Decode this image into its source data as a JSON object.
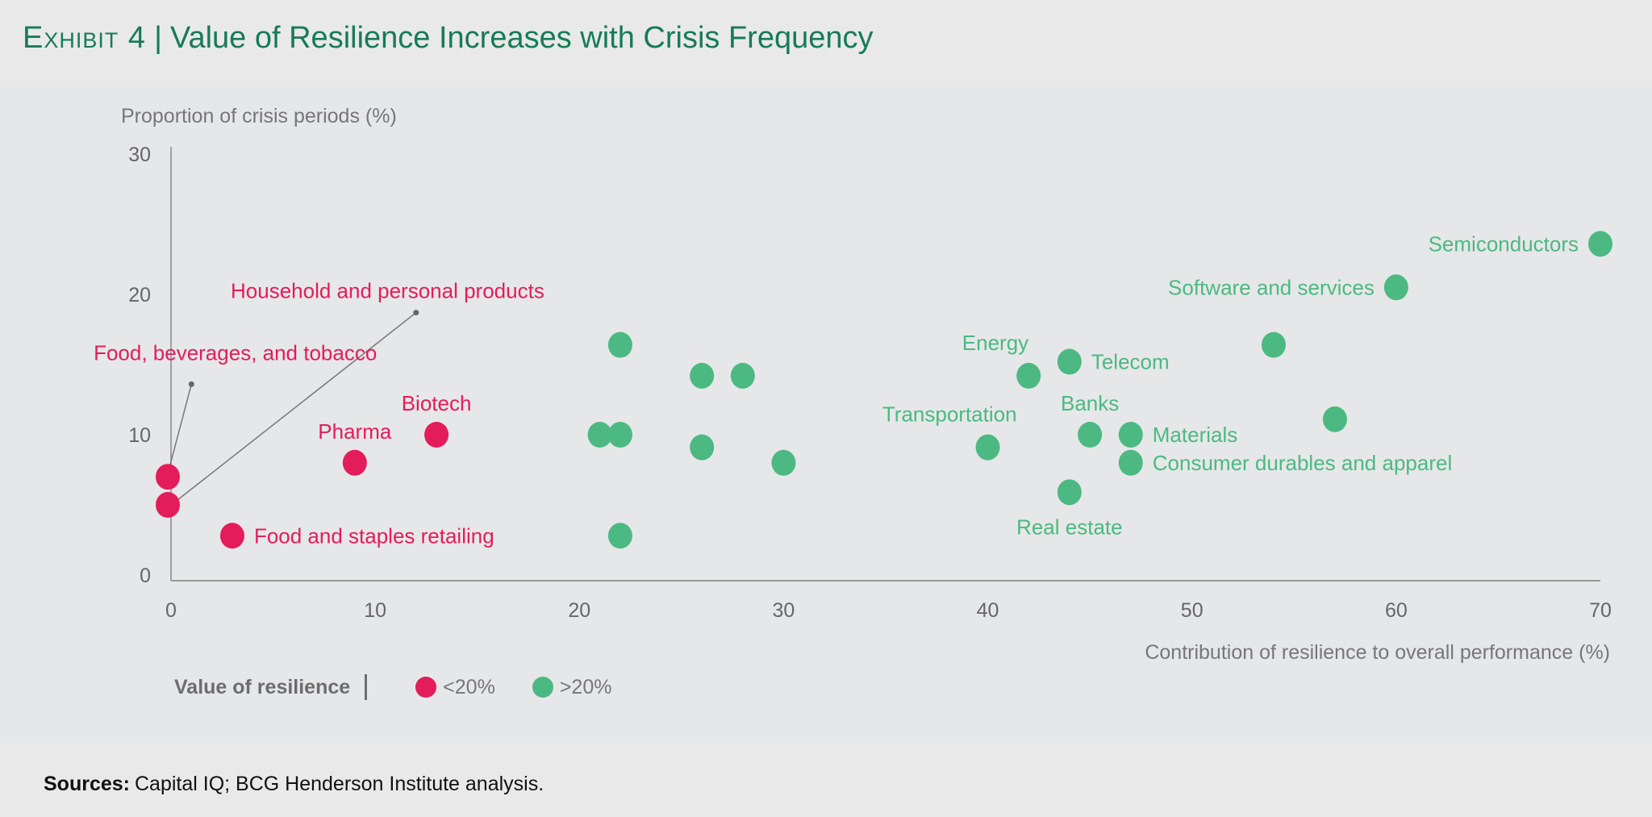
{
  "header": {
    "exhibit": "Exhibit 4",
    "separator": "|",
    "title": "Value of Resilience Increases with Crisis Frequency"
  },
  "footer": {
    "sources_label": "Sources:",
    "sources_text": "Capital IQ; BCG Henderson Institute analysis."
  },
  "colors": {
    "low": "#e31c5b",
    "high": "#4cb982",
    "title": "#177b57",
    "axis": "#888888"
  },
  "chart_data": {
    "type": "scatter",
    "title": "Value of Resilience Increases with Crisis Frequency",
    "xlabel": "Contribution of resilience to overall performance (%)",
    "ylabel": "Proportion of crisis periods (%)",
    "xlim": [
      0,
      70
    ],
    "ylim": [
      0,
      30
    ],
    "xticks": [
      "0",
      "10",
      "20",
      "30",
      "40",
      "50",
      "60",
      "70"
    ],
    "yticks": [
      "0",
      "10",
      "20",
      "30"
    ],
    "grid": false,
    "legend": {
      "title": "Value of resilience",
      "placement": "bottom-left",
      "entries": [
        {
          "label": "<20%",
          "group": "low"
        },
        {
          "label": ">20%",
          "group": "high"
        }
      ]
    },
    "points": [
      {
        "x": 0,
        "y": 7,
        "group": "low",
        "label": "Food, beverages, and tobacco",
        "placement": "callout-a"
      },
      {
        "x": 0,
        "y": 5,
        "group": "low",
        "label": "Household and personal products",
        "placement": "callout-b"
      },
      {
        "x": 3,
        "y": 2.8,
        "group": "low",
        "label": "Food and staples retailing",
        "placement": "right"
      },
      {
        "x": 9,
        "y": 8,
        "group": "low",
        "label": "Pharma",
        "placement": "above"
      },
      {
        "x": 13,
        "y": 10,
        "group": "low",
        "label": "Biotech",
        "placement": "above"
      },
      {
        "x": 22,
        "y": 16.4,
        "group": "high"
      },
      {
        "x": 26,
        "y": 14.2,
        "group": "high"
      },
      {
        "x": 28,
        "y": 14.2,
        "group": "high"
      },
      {
        "x": 21,
        "y": 10,
        "group": "high"
      },
      {
        "x": 22,
        "y": 10,
        "group": "high"
      },
      {
        "x": 26,
        "y": 9.1,
        "group": "high"
      },
      {
        "x": 30,
        "y": 8,
        "group": "high"
      },
      {
        "x": 22,
        "y": 2.8,
        "group": "high"
      },
      {
        "x": 42,
        "y": 14.2,
        "group": "high",
        "label": "Energy",
        "placement": "above-left"
      },
      {
        "x": 44,
        "y": 15.2,
        "group": "high",
        "label": "Telecom",
        "placement": "right"
      },
      {
        "x": 54,
        "y": 16.4,
        "group": "high"
      },
      {
        "x": 70,
        "y": 23.6,
        "group": "high",
        "label": "Semiconductors",
        "placement": "left"
      },
      {
        "x": 60,
        "y": 20.5,
        "group": "high",
        "label": "Software and services",
        "placement": "left"
      },
      {
        "x": 40,
        "y": 9.1,
        "group": "high",
        "label": "Transportation",
        "placement": "above-left"
      },
      {
        "x": 45,
        "y": 10,
        "group": "high",
        "label": "Banks",
        "placement": "above"
      },
      {
        "x": 47,
        "y": 10,
        "group": "high",
        "label": "Materials",
        "placement": "right"
      },
      {
        "x": 57,
        "y": 11.1,
        "group": "high"
      },
      {
        "x": 47,
        "y": 8,
        "group": "high",
        "label": "Consumer durables and apparel",
        "placement": "right"
      },
      {
        "x": 44,
        "y": 5.9,
        "group": "high",
        "label": "Real estate",
        "placement": "below"
      }
    ]
  }
}
